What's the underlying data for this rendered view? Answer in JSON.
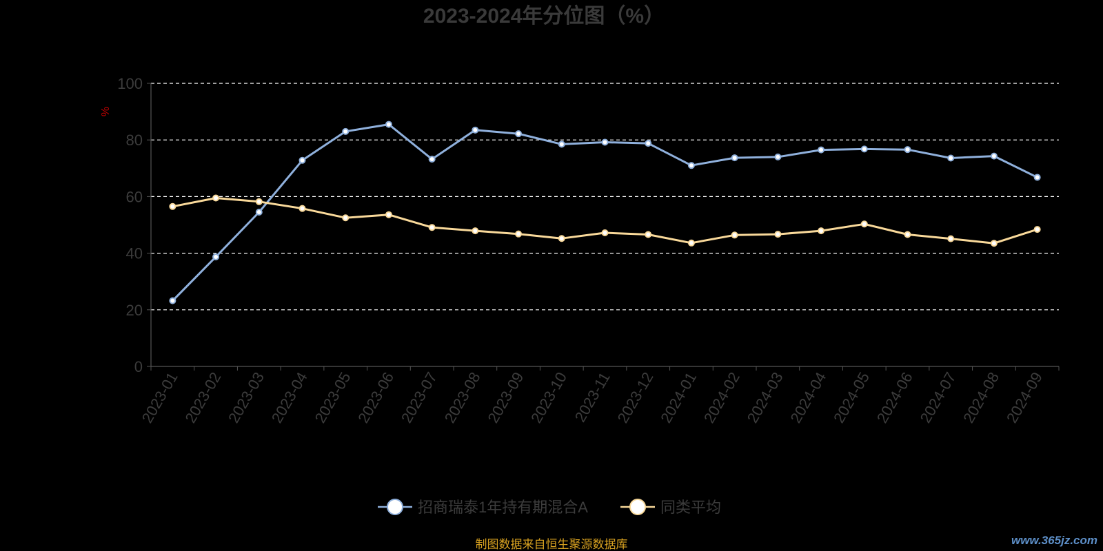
{
  "chart_data": {
    "type": "line",
    "title": "2023-2024年分位图（%）",
    "ylabel": "%",
    "xlabel": "",
    "ylim": [
      0,
      100
    ],
    "yticks": [
      0,
      20,
      40,
      60,
      80,
      100
    ],
    "grid": true,
    "legend_position": "bottom",
    "categories": [
      "2023-01",
      "2023-02",
      "2023-03",
      "2023-04",
      "2023-05",
      "2023-06",
      "2023-07",
      "2023-08",
      "2023-09",
      "2023-10",
      "2023-11",
      "2023-12",
      "2024-01",
      "2024-02",
      "2024-03",
      "2024-04",
      "2024-05",
      "2024-06",
      "2024-07",
      "2024-08",
      "2024-09"
    ],
    "series": [
      {
        "name": "招商瑞泰1年持有期混合A",
        "color": "#8fb0dc",
        "values": [
          23.2,
          38.7,
          54.5,
          72.8,
          83.0,
          85.5,
          73.2,
          83.5,
          82.2,
          78.5,
          79.2,
          78.8,
          71.0,
          73.7,
          74.0,
          76.5,
          76.8,
          76.6,
          73.6,
          74.3,
          66.8
        ]
      },
      {
        "name": "同类平均",
        "color": "#f9d99a",
        "values": [
          56.5,
          59.5,
          58.2,
          55.8,
          52.5,
          53.6,
          49.1,
          47.9,
          46.8,
          45.2,
          47.2,
          46.6,
          43.6,
          46.4,
          46.7,
          47.9,
          50.3,
          46.6,
          45.1,
          43.5,
          48.4
        ]
      }
    ]
  },
  "footer": {
    "source": "制图数据来自恒生聚源数据库",
    "watermark": "www.365jz.com"
  }
}
